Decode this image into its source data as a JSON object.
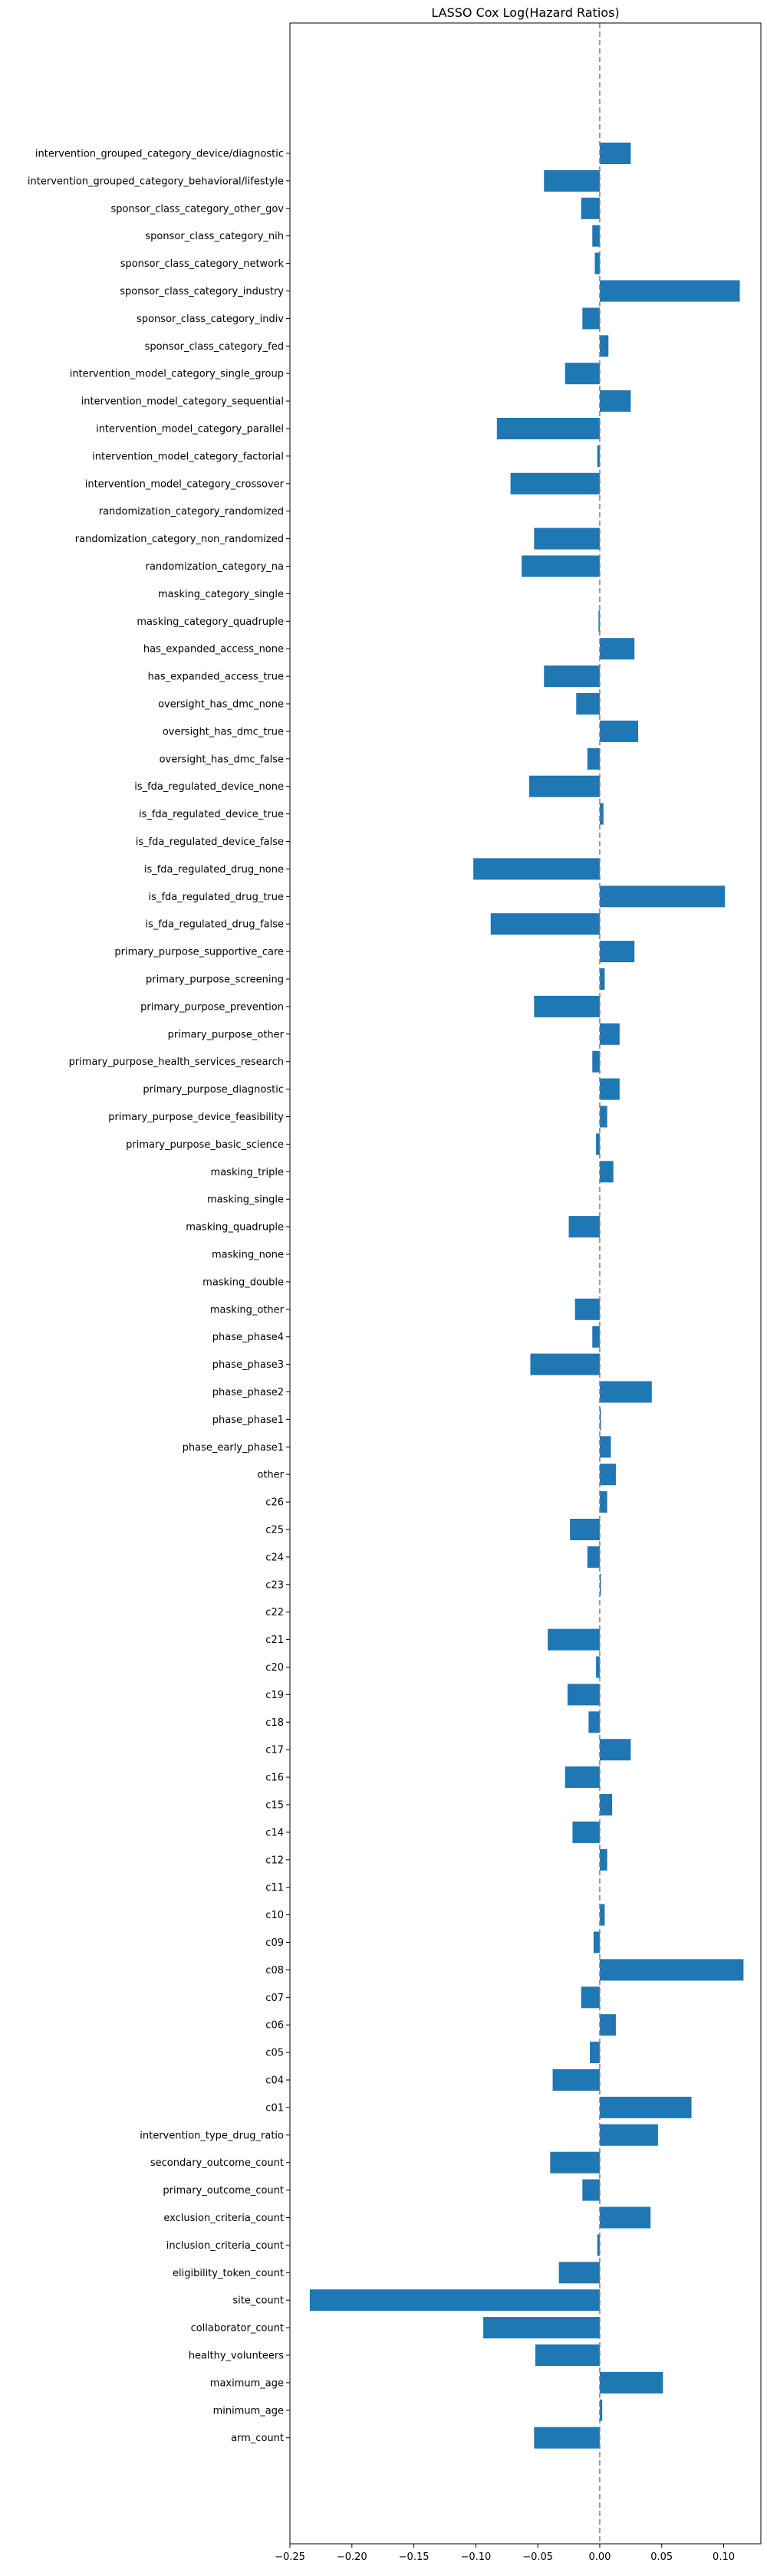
{
  "chart_data": {
    "type": "bar",
    "orientation": "horizontal",
    "title": "LASSO Cox Log(Hazard Ratios)",
    "xlabel": "",
    "ylabel": "",
    "xlim": [
      -0.25,
      0.13
    ],
    "xticks": [
      -0.25,
      -0.2,
      -0.15,
      -0.1,
      -0.05,
      0.0,
      0.05,
      0.1
    ],
    "xtick_labels": [
      "−0.25",
      "−0.20",
      "−0.15",
      "−0.10",
      "−0.05",
      "0.00",
      "0.05",
      "0.10"
    ],
    "reference_line": {
      "x": 0.0,
      "style": "dashed",
      "color": "#808080"
    },
    "bar_color": "#1f77b4",
    "grid": false,
    "categories": [
      "intervention_grouped_category_device/diagnostic",
      "intervention_grouped_category_behavioral/lifestyle",
      "sponsor_class_category_other_gov",
      "sponsor_class_category_nih",
      "sponsor_class_category_network",
      "sponsor_class_category_industry",
      "sponsor_class_category_indiv",
      "sponsor_class_category_fed",
      "intervention_model_category_single_group",
      "intervention_model_category_sequential",
      "intervention_model_category_parallel",
      "intervention_model_category_factorial",
      "intervention_model_category_crossover",
      "randomization_category_randomized",
      "randomization_category_non_randomized",
      "randomization_category_na",
      "masking_category_single",
      "masking_category_quadruple",
      "has_expanded_access_none",
      "has_expanded_access_true",
      "oversight_has_dmc_none",
      "oversight_has_dmc_true",
      "oversight_has_dmc_false",
      "is_fda_regulated_device_none",
      "is_fda_regulated_device_true",
      "is_fda_regulated_device_false",
      "is_fda_regulated_drug_none",
      "is_fda_regulated_drug_true",
      "is_fda_regulated_drug_false",
      "primary_purpose_supportive_care",
      "primary_purpose_screening",
      "primary_purpose_prevention",
      "primary_purpose_other",
      "primary_purpose_health_services_research",
      "primary_purpose_diagnostic",
      "primary_purpose_device_feasibility",
      "primary_purpose_basic_science",
      "masking_triple",
      "masking_single",
      "masking_quadruple",
      "masking_none",
      "masking_double",
      "masking_other",
      "phase_phase4",
      "phase_phase3",
      "phase_phase2",
      "phase_phase1",
      "phase_early_phase1",
      "other",
      "c26",
      "c25",
      "c24",
      "c23",
      "c22",
      "c21",
      "c20",
      "c19",
      "c18",
      "c17",
      "c16",
      "c15",
      "c14",
      "c12",
      "c11",
      "c10",
      "c09",
      "c08",
      "c07",
      "c06",
      "c05",
      "c04",
      "c01",
      "intervention_type_drug_ratio",
      "secondary_outcome_count",
      "primary_outcome_count",
      "exclusion_criteria_count",
      "inclusion_criteria_count",
      "eligibility_token_count",
      "site_count",
      "collaborator_count",
      "healthy_volunteers",
      "maximum_age",
      "minimum_age",
      "arm_count"
    ],
    "values": [
      0.025,
      -0.045,
      -0.015,
      -0.006,
      -0.004,
      0.113,
      -0.014,
      0.007,
      -0.028,
      0.025,
      -0.083,
      -0.002,
      -0.072,
      0.0,
      -0.053,
      -0.063,
      0.0,
      -0.001,
      0.028,
      -0.045,
      -0.019,
      0.031,
      -0.01,
      -0.057,
      0.003,
      0.0,
      -0.102,
      0.101,
      -0.088,
      0.028,
      0.004,
      -0.053,
      0.016,
      -0.006,
      0.016,
      0.006,
      -0.003,
      0.011,
      0.0,
      -0.025,
      0.0,
      0.0,
      -0.02,
      -0.006,
      -0.056,
      0.042,
      0.001,
      0.009,
      0.013,
      0.006,
      -0.024,
      -0.01,
      0.001,
      0.0,
      -0.042,
      -0.003,
      -0.026,
      -0.009,
      0.025,
      -0.028,
      0.01,
      -0.022,
      0.006,
      0.0,
      0.004,
      -0.005,
      0.116,
      -0.015,
      0.013,
      -0.008,
      -0.038,
      0.074,
      0.047,
      -0.04,
      -0.014,
      0.041,
      -0.002,
      -0.033,
      -0.234,
      -0.094,
      -0.052,
      0.051,
      0.002,
      -0.053
    ]
  }
}
